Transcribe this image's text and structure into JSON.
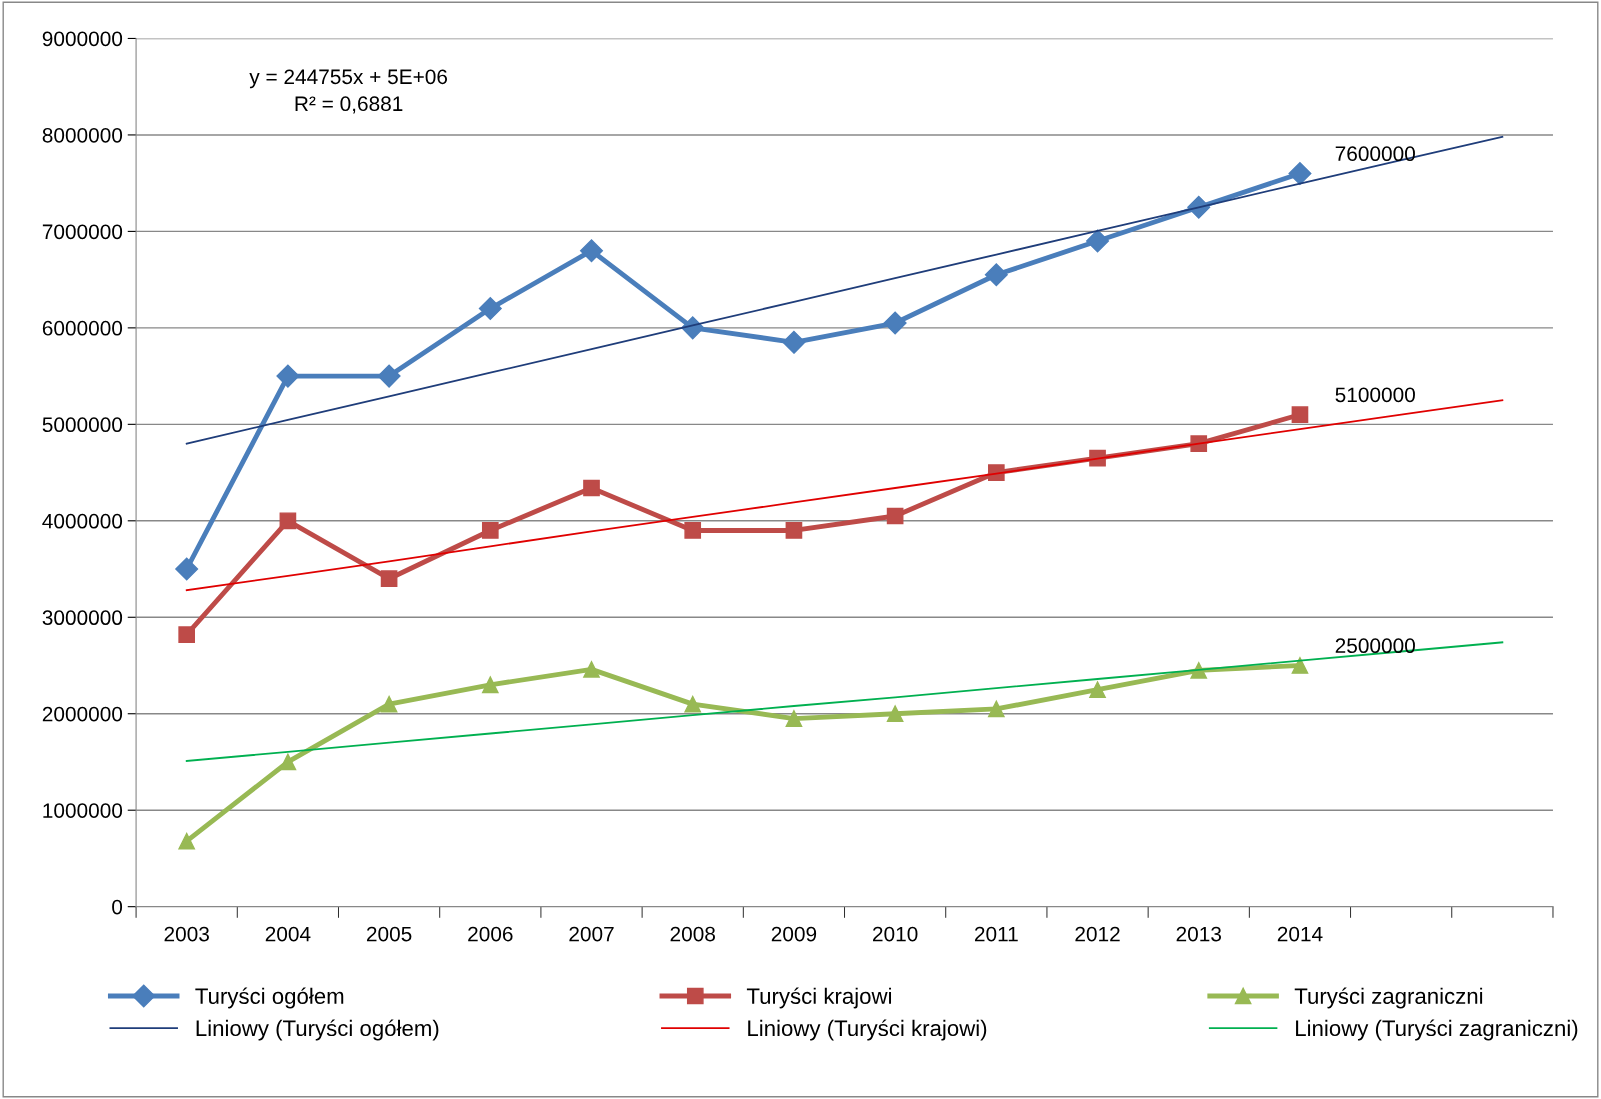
{
  "chart_data": {
    "type": "line",
    "categories": [
      "2003",
      "2004",
      "2005",
      "2006",
      "2007",
      "2008",
      "2009",
      "2010",
      "2011",
      "2012",
      "2013",
      "2014",
      null,
      null
    ],
    "ylim": [
      0,
      9000000
    ],
    "yticks": [
      0,
      1000000,
      2000000,
      3000000,
      4000000,
      5000000,
      6000000,
      7000000,
      8000000,
      9000000
    ],
    "grid": "y",
    "legend": "bottom",
    "annotations": [
      "y = 244755x + 5E+06\nR² = 0,6881"
    ],
    "series": [
      {
        "name": "Turyści ogółem",
        "color": "#4a7ebb",
        "marker": "diamond",
        "values": [
          3500000,
          5500000,
          5500000,
          6200000,
          6800000,
          6000000,
          5850000,
          6050000,
          6550000,
          6900000,
          7250000,
          7600000,
          null,
          null
        ],
        "value_labels": [
          null,
          null,
          null,
          null,
          null,
          null,
          null,
          null,
          null,
          null,
          null,
          "7600000",
          null,
          null
        ]
      },
      {
        "name": "Turyści krajowi",
        "color": "#be4b48",
        "marker": "square",
        "values": [
          2820000,
          4000000,
          3400000,
          3900000,
          4340000,
          3900000,
          3900000,
          4050000,
          4500000,
          4650000,
          4800000,
          5100000,
          null,
          null
        ],
        "value_labels": [
          null,
          null,
          null,
          null,
          null,
          null,
          null,
          null,
          null,
          null,
          null,
          "5100000",
          null,
          null
        ]
      },
      {
        "name": "Turyści zagraniczni",
        "color": "#98b954",
        "marker": "triangle",
        "values": [
          680000,
          1500000,
          2100000,
          2300000,
          2460000,
          2100000,
          1950000,
          2000000,
          2050000,
          2250000,
          2450000,
          2500000,
          null,
          null
        ],
        "value_labels": [
          null,
          null,
          null,
          null,
          null,
          null,
          null,
          null,
          null,
          null,
          null,
          "2500000",
          null,
          null
        ]
      },
      {
        "name": "Liniowy (Turyści ogółem)",
        "color": "#1f3d7a",
        "marker": "none",
        "values": [
          4800000,
          5045000,
          5290000,
          5535000,
          5780000,
          6025000,
          6270000,
          6515000,
          6760000,
          7005000,
          7250000,
          7495000,
          7740000,
          7980000
        ]
      },
      {
        "name": "Liniowy (Turyści krajowi)",
        "color": "#e00000",
        "marker": "none",
        "values": [
          3280000,
          3430000,
          3580000,
          3735000,
          3890000,
          4040000,
          4190000,
          4340000,
          4490000,
          4645000,
          4800000,
          4950000,
          5100000,
          5250000
        ]
      },
      {
        "name": "Liniowy (Turyści zagraniczni)",
        "color": "#00b050",
        "marker": "none",
        "values": [
          1510000,
          1605000,
          1700000,
          1795000,
          1890000,
          1985000,
          2080000,
          2170000,
          2265000,
          2360000,
          2455000,
          2550000,
          2645000,
          2740000
        ]
      }
    ]
  }
}
